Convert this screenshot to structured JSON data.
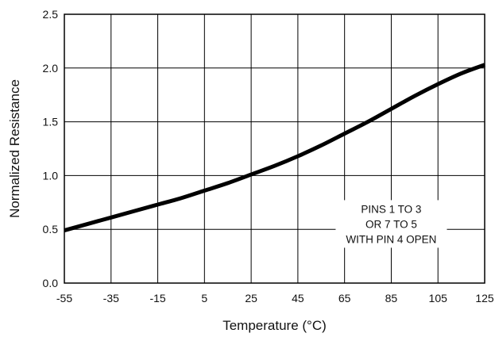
{
  "chart_data": {
    "type": "line",
    "title": "",
    "xlabel": "Temperature (°C)",
    "ylabel": "Normalized Resistance",
    "xlim": [
      -55,
      125
    ],
    "ylim": [
      0,
      2.5
    ],
    "x_ticks": [
      -55,
      -35,
      -15,
      5,
      25,
      45,
      65,
      85,
      105,
      125
    ],
    "x_tick_labels": [
      "-55",
      "-35",
      "-15",
      "5",
      "25",
      "45",
      "65",
      "85",
      "105",
      "125"
    ],
    "y_ticks": [
      0,
      0.5,
      1.0,
      1.5,
      2.0,
      2.5
    ],
    "y_tick_labels": [
      "0.0",
      "0.5",
      "1.0",
      "1.5",
      "2.0",
      "2.5"
    ],
    "grid": true,
    "legend": "none",
    "annotation": {
      "lines": [
        "PINS 1 TO 3",
        "OR 7 TO 5",
        "WITH PIN 4 OPEN"
      ],
      "at": [
        85,
        0.55
      ]
    },
    "series": [
      {
        "color": "#000000",
        "x": [
          -55,
          -45,
          -35,
          -25,
          -15,
          -5,
          5,
          15,
          25,
          35,
          45,
          55,
          65,
          75,
          85,
          95,
          105,
          115,
          125
        ],
        "y": [
          0.49,
          0.55,
          0.61,
          0.67,
          0.73,
          0.79,
          0.86,
          0.93,
          1.01,
          1.09,
          1.18,
          1.28,
          1.39,
          1.5,
          1.62,
          1.74,
          1.85,
          1.95,
          2.03
        ]
      }
    ]
  }
}
